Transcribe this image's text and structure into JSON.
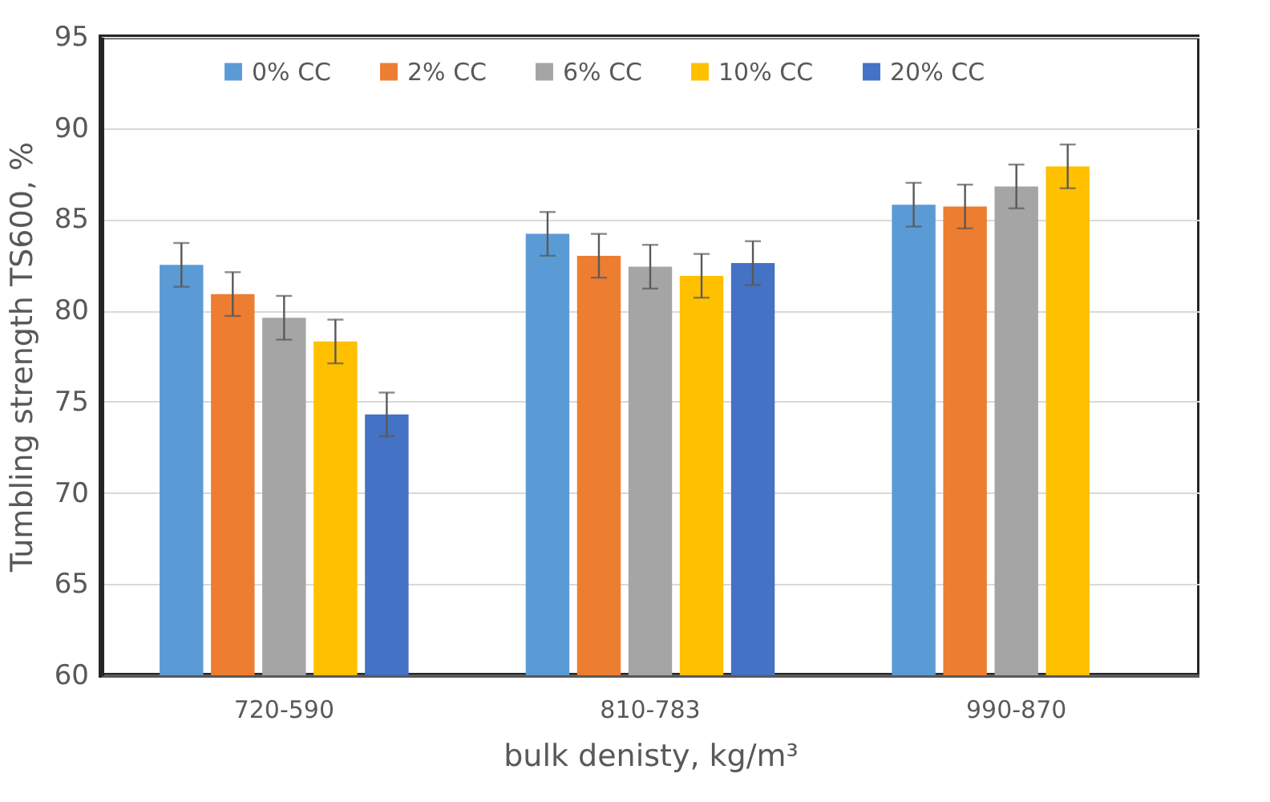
{
  "chart_data": {
    "type": "bar",
    "ylabel": "Tumbling strength TS600, %",
    "xlabel": "bulk denisty, kg/m³",
    "categories": [
      "720-590",
      "810-783",
      "990-870"
    ],
    "series": [
      {
        "name": "0% CC",
        "color": "#5b9bd5",
        "values": [
          82.5,
          84.2,
          85.8
        ],
        "errors": [
          1.2,
          1.2,
          1.2
        ]
      },
      {
        "name": "2% CC",
        "color": "#ed7d31",
        "values": [
          80.9,
          83.0,
          85.7
        ],
        "errors": [
          1.2,
          1.2,
          1.2
        ]
      },
      {
        "name": "6% CC",
        "color": "#a5a5a5",
        "values": [
          79.6,
          82.4,
          86.8
        ],
        "errors": [
          1.2,
          1.2,
          1.2
        ]
      },
      {
        "name": "10% CC",
        "color": "#ffc000",
        "values": [
          78.3,
          81.9,
          87.9
        ],
        "errors": [
          1.2,
          1.2,
          1.2
        ]
      },
      {
        "name": "20% CC",
        "color": "#4472c4",
        "values": [
          74.3,
          82.6,
          null
        ],
        "errors": [
          1.2,
          1.2,
          null
        ]
      }
    ],
    "ylim": [
      60,
      95
    ],
    "yticks": [
      60,
      65,
      70,
      75,
      80,
      85,
      90,
      95
    ],
    "grid": "y",
    "legend": "top"
  }
}
